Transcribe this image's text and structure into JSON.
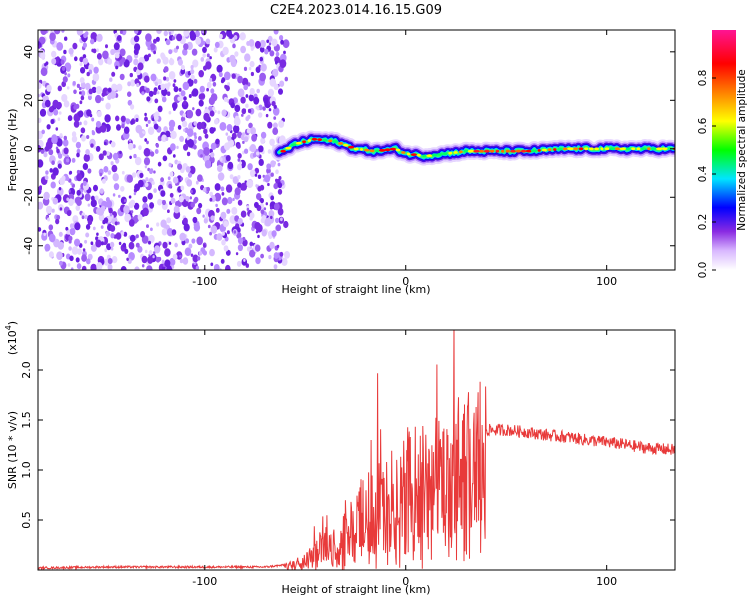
{
  "title": "C2E4.2023.014.16.15.G09",
  "colors": {
    "snr_line": "#e83a3a",
    "axis": "#000000",
    "dot": "#6a1fe0"
  },
  "chart_data": [
    {
      "type": "heatmap",
      "xlabel": "Height of straight line (km)",
      "ylabel": "Frequency (Hz)",
      "xlim": [
        -183,
        134
      ],
      "ylim": [
        -50,
        49
      ],
      "xticks": [
        -100,
        0,
        100
      ],
      "yticks": [
        -40,
        -20,
        0,
        20,
        40
      ],
      "colorbar": {
        "label": "Normalized spectral amplitude",
        "range": [
          0.0,
          1.0
        ],
        "ticks": [
          "0.0",
          "0.2",
          "0.4",
          "0.6",
          "0.8"
        ],
        "colors": [
          "#ffffff",
          "#d9b8ff",
          "#8a2be2",
          "#0000ff",
          "#00e5ff",
          "#00ff00",
          "#ffff00",
          "#ff8000",
          "#ff0000",
          "#ff1493"
        ]
      },
      "noise_region_x": [
        -183,
        -63
      ],
      "ridge": {
        "x": [
          -63,
          -55,
          -45,
          -35,
          -25,
          -15,
          -5,
          0,
          10,
          20,
          30,
          40,
          60,
          80,
          100,
          120,
          134
        ],
        "y": [
          -2,
          2,
          4,
          3,
          0,
          -1,
          0,
          -2,
          -3,
          -2,
          -1,
          -1,
          -1,
          0,
          0,
          0,
          0
        ]
      }
    },
    {
      "type": "line",
      "xlabel": "Height of straight line (km)",
      "ylabel": "SNR (10 * v/v)",
      "scale_label": "(x10",
      "scale_exp": "4",
      "xlim": [
        -183,
        134
      ],
      "ylim": [
        0,
        2.4
      ],
      "xticks": [
        -100,
        0,
        100
      ],
      "yticks": [
        "0.5",
        "1.0",
        "1.5",
        "2.0"
      ],
      "series": [
        {
          "x": [
            -183,
            -150,
            -100,
            -70,
            -60,
            -50,
            -45,
            -40,
            -35,
            -30,
            -25,
            -20,
            -15,
            -10,
            -5,
            0,
            5,
            10,
            15,
            20,
            25,
            30,
            35,
            40,
            50,
            60,
            70,
            80,
            90,
            100,
            110,
            120,
            134
          ],
          "y": [
            0.02,
            0.03,
            0.03,
            0.03,
            0.05,
            0.12,
            0.25,
            0.35,
            0.3,
            0.5,
            0.6,
            0.7,
            0.75,
            0.8,
            0.9,
            1.0,
            1.1,
            1.05,
            1.1,
            1.15,
            1.25,
            1.3,
            1.35,
            1.4,
            1.4,
            1.38,
            1.35,
            1.33,
            1.3,
            1.28,
            1.25,
            1.22,
            1.2
          ]
        }
      ]
    }
  ]
}
